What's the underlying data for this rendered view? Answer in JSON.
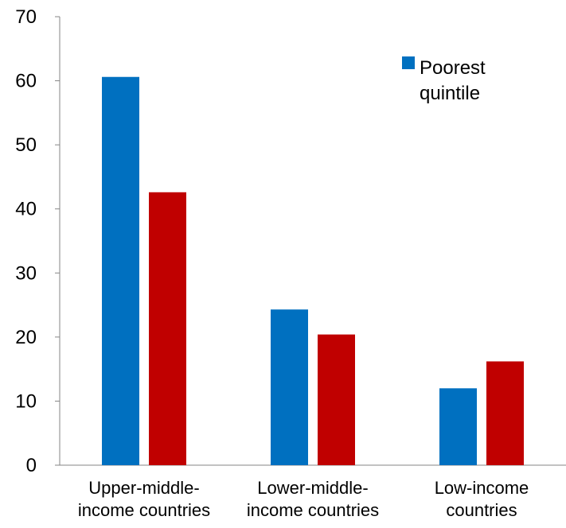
{
  "chart_data": {
    "type": "bar",
    "categories": [
      [
        "Upper-middle-",
        "income countries"
      ],
      [
        "Lower-middle-",
        "income countries"
      ],
      [
        "Low-income",
        "countries"
      ]
    ],
    "series": [
      {
        "name": "Poorest quintile",
        "legend_lines": [
          "Poorest",
          "quintile"
        ],
        "color": "#0070C0",
        "values": [
          60.6,
          24.3,
          12.0
        ]
      },
      {
        "color": "#C00000",
        "values": [
          42.6,
          20.4,
          16.2
        ]
      }
    ],
    "ylim": [
      0,
      70
    ],
    "yticks": [
      0,
      10,
      20,
      30,
      40,
      50,
      60,
      70
    ],
    "grid": false,
    "legend_position": "top-right"
  }
}
